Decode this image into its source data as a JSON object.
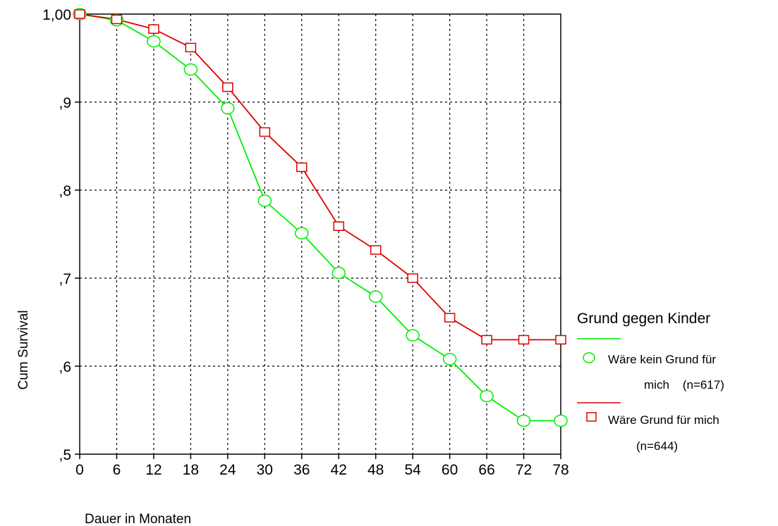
{
  "chart_data": {
    "type": "line",
    "xlabel": "Dauer in Monaten",
    "ylabel": "Cum Survival",
    "xlim": [
      0,
      78
    ],
    "ylim": [
      0.5,
      1.0
    ],
    "x_ticks": [
      "0",
      "6",
      "12",
      "18",
      "24",
      "30",
      "36",
      "42",
      "48",
      "54",
      "60",
      "66",
      "72",
      "78"
    ],
    "x_tick_values": [
      0,
      6,
      12,
      18,
      24,
      30,
      36,
      42,
      48,
      54,
      60,
      66,
      72,
      78
    ],
    "y_ticks": [
      ",5",
      ",6",
      ",7",
      ",8",
      ",9",
      "1,00"
    ],
    "y_tick_values": [
      0.5,
      0.6,
      0.7,
      0.8,
      0.9,
      1.0
    ],
    "grid": true,
    "legend_position": "right",
    "legend_title": "Grund gegen Kinder",
    "x": [
      0,
      6,
      12,
      18,
      24,
      30,
      36,
      42,
      48,
      54,
      60,
      66,
      72,
      78
    ],
    "series": [
      {
        "name_line1": "Wäre kein Grund für",
        "name_line2": "mich    (n=617)",
        "color": "#00ee00",
        "marker": "circle",
        "values": [
          1.0,
          0.993,
          0.969,
          0.937,
          0.893,
          0.788,
          0.751,
          0.706,
          0.679,
          0.635,
          0.608,
          0.566,
          0.538,
          0.538
        ]
      },
      {
        "name_line1": "Wäre Grund für mich",
        "name_line2": "(n=644)",
        "color": "#dd0000",
        "marker": "square",
        "values": [
          1.0,
          0.994,
          0.983,
          0.962,
          0.917,
          0.866,
          0.826,
          0.759,
          0.732,
          0.7,
          0.655,
          0.63,
          0.63,
          0.63
        ]
      }
    ]
  }
}
